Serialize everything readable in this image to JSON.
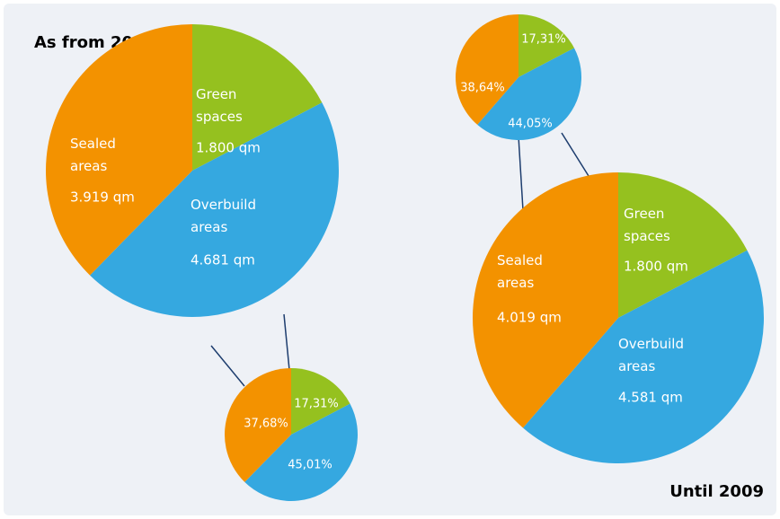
{
  "chart_data": [
    {
      "type": "pie",
      "title": "As from 2010",
      "categories": [
        "Green spaces",
        "Overbuild areas",
        "Sealed areas"
      ],
      "values": [
        1800,
        4681,
        3919
      ],
      "value_labels": [
        "1.800 qm",
        "4.681 qm",
        "3.919 qm"
      ],
      "colors": [
        "#95c11f",
        "#35a8e0",
        "#f39200"
      ]
    },
    {
      "type": "pie",
      "values": [
        17.31,
        45.01,
        37.68
      ],
      "value_labels": [
        "17,31%",
        "45,01%",
        "37,68%"
      ],
      "colors": [
        "#95c11f",
        "#35a8e0",
        "#f39200"
      ]
    },
    {
      "type": "pie",
      "title": "Until 2009",
      "categories": [
        "Green spaces",
        "Overbuild areas",
        "Sealed areas"
      ],
      "values": [
        1800,
        4581,
        4019
      ],
      "value_labels": [
        "1.800 qm",
        "4.581 qm",
        "4.019 qm"
      ],
      "colors": [
        "#95c11f",
        "#35a8e0",
        "#f39200"
      ]
    },
    {
      "type": "pie",
      "values": [
        17.31,
        44.05,
        38.64
      ],
      "value_labels": [
        "17,31%",
        "44,05%",
        "38,64%"
      ],
      "colors": [
        "#95c11f",
        "#35a8e0",
        "#f39200"
      ]
    }
  ]
}
